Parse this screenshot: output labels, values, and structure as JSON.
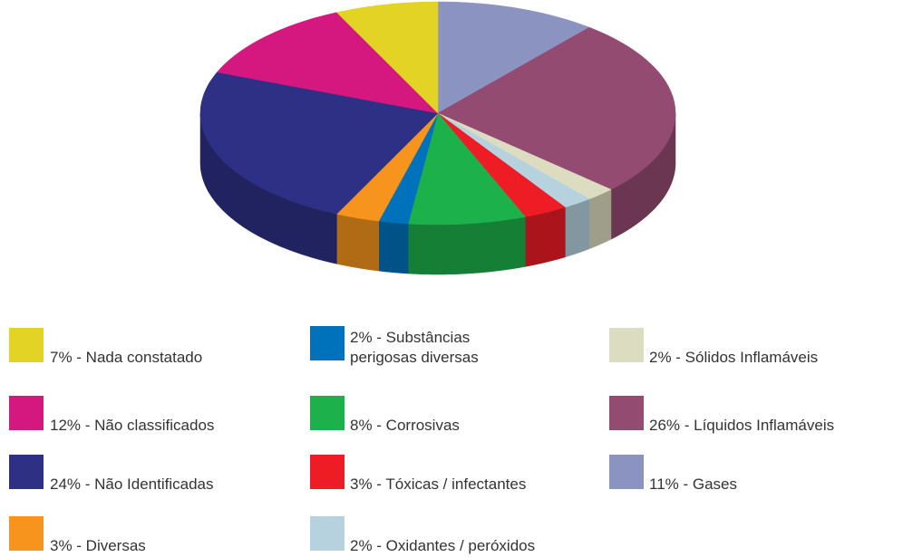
{
  "chart_data": {
    "type": "pie3d",
    "categories": [
      "11% - Gases",
      "26% - Líquidos Inflamáveis",
      "2% - Sólidos Inflamáveis",
      "2% - Oxidantes / peróxidos",
      "3% - Tóxicas / infectantes",
      "8% - Corrosivas",
      "2% - Substâncias\nperigosas diversas",
      "3% - Diversas",
      "24% - Não Identificadas",
      "12% - Não classificados",
      "7% - Nada constatado"
    ],
    "values": [
      11,
      26,
      2,
      2,
      3,
      8,
      2,
      3,
      24,
      12,
      7
    ],
    "colors": [
      "#8b93c0",
      "#934b72",
      "#dcdcc0",
      "#b6d2df",
      "#ee1c25",
      "#1db14b",
      "#0072bb",
      "#f7941d",
      "#2e3085",
      "#d4187f",
      "#e2d324"
    ]
  }
}
